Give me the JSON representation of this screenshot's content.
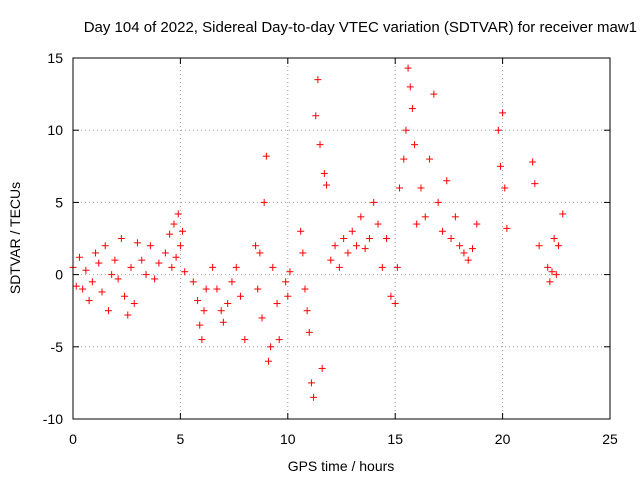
{
  "chart_data": {
    "type": "scatter",
    "title": "Day 104 of 2022, Sidereal Day-to-day VTEC variation (SDTVAR) for receiver maw1",
    "xlabel": "GPS time / hours",
    "ylabel": "SDTVAR / TECUs",
    "xlim": [
      0,
      25
    ],
    "ylim": [
      -10,
      15
    ],
    "xticks": [
      0,
      5,
      10,
      15,
      20,
      25
    ],
    "yticks": [
      -10,
      -5,
      0,
      5,
      10,
      15
    ],
    "grid": true,
    "marker": "+",
    "color": "#ff0000",
    "segments": [
      {
        "x": [
          0.0,
          0.15,
          0.3,
          0.45,
          0.6,
          0.75,
          0.9,
          1.05,
          1.2,
          1.35,
          1.5,
          1.65,
          1.8,
          1.95,
          2.1,
          2.25,
          2.4,
          2.55,
          2.7,
          2.85
        ],
        "y": [
          0.5,
          -0.8,
          1.2,
          -1.0,
          0.3,
          -1.8,
          -0.5,
          1.5,
          0.8,
          -1.2,
          2.0,
          -2.5,
          0.0,
          1.0,
          -0.3,
          2.5,
          -1.5,
          -2.8,
          0.5,
          -2.0
        ]
      },
      {
        "x": [
          3.0,
          3.2,
          3.4,
          3.6,
          3.8,
          4.0
        ],
        "y": [
          2.2,
          1.0,
          0.0,
          2.0,
          -0.3,
          0.8
        ]
      },
      {
        "x": [
          4.3,
          4.5,
          4.6,
          4.7,
          4.8,
          4.9,
          5.0,
          5.1,
          5.2
        ],
        "y": [
          1.5,
          2.8,
          0.5,
          3.5,
          1.2,
          4.2,
          2.0,
          3.0,
          0.2
        ]
      },
      {
        "x": [
          5.6,
          5.8,
          5.9,
          6.0,
          6.1,
          6.2
        ],
        "y": [
          -0.5,
          -1.8,
          -3.5,
          -4.5,
          -2.5,
          -1.0
        ]
      },
      {
        "x": [
          6.5,
          6.7,
          6.9,
          7.0,
          7.2,
          7.4,
          7.6,
          7.8,
          8.0
        ],
        "y": [
          0.5,
          -1.0,
          -2.5,
          -3.3,
          -2.0,
          -0.5,
          0.5,
          -1.5,
          -4.5
        ]
      },
      {
        "x": [
          8.5,
          8.6,
          8.7,
          8.8,
          8.9,
          9.0,
          9.1,
          9.2,
          9.3,
          9.5,
          9.6
        ],
        "y": [
          2.0,
          -1.0,
          1.5,
          -3.0,
          5.0,
          8.2,
          -6.0,
          -5.0,
          0.5,
          -2.0,
          -4.5
        ]
      },
      {
        "x": [
          9.9,
          10.0,
          10.1
        ],
        "y": [
          -0.5,
          -1.5,
          0.2
        ]
      },
      {
        "x": [
          10.6,
          10.7,
          10.8,
          10.9,
          11.0,
          11.1,
          11.2,
          11.3,
          11.4,
          11.5,
          11.6,
          11.7,
          11.8
        ],
        "y": [
          3.0,
          1.5,
          -1.0,
          -2.5,
          -4.0,
          -7.5,
          -8.5,
          11.0,
          13.5,
          9.0,
          -6.5,
          7.0,
          6.2
        ]
      },
      {
        "x": [
          12.0,
          12.2,
          12.4,
          12.6,
          12.8,
          13.0,
          13.2,
          13.4,
          13.6,
          13.8,
          14.0,
          14.2,
          14.4,
          14.6
        ],
        "y": [
          1.0,
          2.0,
          0.5,
          2.5,
          1.5,
          3.0,
          2.0,
          4.0,
          1.8,
          2.5,
          5.0,
          3.5,
          0.5,
          2.5
        ]
      },
      {
        "x": [
          14.8,
          15.0,
          15.1,
          15.2,
          15.4,
          15.5,
          15.6,
          15.7,
          15.8,
          15.9,
          16.0,
          16.2,
          16.4,
          16.6,
          16.8,
          17.0,
          17.2,
          17.4
        ],
        "y": [
          -1.5,
          -2.0,
          0.5,
          6.0,
          8.0,
          10.0,
          14.3,
          13.0,
          11.5,
          9.0,
          3.5,
          6.0,
          4.0,
          8.0,
          12.5,
          5.0,
          3.0,
          6.5
        ]
      },
      {
        "x": [
          17.6,
          17.8,
          18.0,
          18.2,
          18.4,
          18.6,
          18.8
        ],
        "y": [
          2.5,
          4.0,
          2.0,
          1.5,
          1.0,
          1.8,
          3.5
        ]
      },
      {
        "x": [
          19.8,
          19.9,
          20.0,
          20.1,
          20.2
        ],
        "y": [
          10.0,
          7.5,
          11.2,
          6.0,
          3.2
        ]
      },
      {
        "x": [
          21.4,
          21.5,
          21.7
        ],
        "y": [
          7.8,
          6.3,
          2.0
        ]
      },
      {
        "x": [
          22.1,
          22.2,
          22.3,
          22.4,
          22.5,
          22.6,
          22.8
        ],
        "y": [
          0.5,
          -0.5,
          0.2,
          2.5,
          0.0,
          2.0,
          4.2
        ]
      }
    ]
  }
}
